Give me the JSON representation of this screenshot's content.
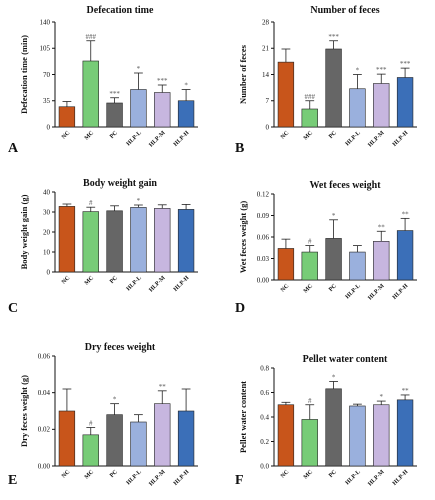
{
  "groups": [
    "NC",
    "MC",
    "PC",
    "HLP-L",
    "HLP-M",
    "HLP-H"
  ],
  "colors": [
    "#c8551b",
    "#77cc77",
    "#666666",
    "#9ab0dd",
    "#c7b6df",
    "#3b6fb8"
  ],
  "chart_data": [
    {
      "letter": "A",
      "type": "bar",
      "title": "Defecation time",
      "ylabel": "Defecation time (min)",
      "categories": [
        "NC",
        "MC",
        "PC",
        "HLP-L",
        "HLP-M",
        "HLP-H"
      ],
      "values": [
        27,
        88,
        32,
        50,
        46,
        35
      ],
      "errors": [
        7,
        27,
        7,
        22,
        10,
        15
      ],
      "significance": [
        "",
        "###",
        "***",
        "*",
        "***",
        "*"
      ],
      "ylim": [
        0,
        140
      ],
      "yticks": [
        "0",
        "35",
        "70",
        "105",
        "140"
      ]
    },
    {
      "letter": "B",
      "type": "bar",
      "title": "Number of feces",
      "ylabel": "Number of feces",
      "categories": [
        "NC",
        "MC",
        "PC",
        "HLP-L",
        "HLP-M",
        "HLP-H"
      ],
      "values": [
        17.3,
        4.8,
        20.8,
        10.2,
        11.6,
        13.2
      ],
      "errors": [
        3.5,
        2.2,
        2.2,
        3.8,
        2.5,
        2.5
      ],
      "significance": [
        "",
        "###",
        "***",
        "*",
        "***",
        "***"
      ],
      "ylim": [
        0,
        28
      ],
      "yticks": [
        "0",
        "7",
        "14",
        "21",
        "28"
      ]
    },
    {
      "letter": "C",
      "type": "bar",
      "title": "Body weight gain",
      "ylabel": "Body weight gain (g)",
      "categories": [
        "NC",
        "MC",
        "PC",
        "HLP-L",
        "HLP-M",
        "HLP-H"
      ],
      "values": [
        32.8,
        30.2,
        30.6,
        32.3,
        31.8,
        31.3
      ],
      "errors": [
        1.2,
        2.2,
        2.5,
        1.2,
        1.8,
        2.5
      ],
      "significance": [
        "",
        "#",
        "",
        "*",
        "",
        ""
      ],
      "ylim": [
        0,
        40
      ],
      "yticks": [
        "0",
        "10",
        "20",
        "30",
        "40"
      ]
    },
    {
      "letter": "D",
      "type": "bar",
      "title": "Wet feces weight",
      "ylabel": "Wet feces weight (g)",
      "categories": [
        "NC",
        "MC",
        "PC",
        "HLP-L",
        "HLP-M",
        "HLP-H"
      ],
      "values": [
        0.044,
        0.039,
        0.058,
        0.039,
        0.054,
        0.069
      ],
      "errors": [
        0.013,
        0.009,
        0.026,
        0.009,
        0.014,
        0.017
      ],
      "significance": [
        "",
        "#",
        "*",
        "",
        "**",
        "**"
      ],
      "ylim": [
        0,
        0.12
      ],
      "yticks": [
        "0.00",
        "0.03",
        "0.06",
        "0.09",
        "0.12"
      ]
    },
    {
      "letter": "E",
      "type": "bar",
      "title": "Dry feces weight",
      "ylabel": "Dry feces weight (g)",
      "categories": [
        "NC",
        "MC",
        "PC",
        "HLP-L",
        "HLP-M",
        "HLP-H"
      ],
      "values": [
        0.03,
        0.017,
        0.028,
        0.024,
        0.034,
        0.03
      ],
      "errors": [
        0.012,
        0.004,
        0.006,
        0.004,
        0.007,
        0.012
      ],
      "significance": [
        "",
        "#",
        "*",
        "",
        "**",
        ""
      ],
      "ylim": [
        0,
        0.06
      ],
      "yticks": [
        "0.00",
        "0.02",
        "0.04",
        "0.06"
      ]
    },
    {
      "letter": "F",
      "type": "bar",
      "title": "Pellet water content",
      "ylabel": "Pellet water content",
      "categories": [
        "NC",
        "MC",
        "PC",
        "HLP-L",
        "HLP-M",
        "HLP-H"
      ],
      "values": [
        0.5,
        0.38,
        0.63,
        0.49,
        0.5,
        0.54
      ],
      "errors": [
        0.02,
        0.12,
        0.06,
        0.015,
        0.03,
        0.04
      ],
      "significance": [
        "",
        "#",
        "*",
        "",
        "*",
        "**"
      ],
      "ylim": [
        0,
        0.8
      ],
      "yticks": [
        "0.0",
        "0.2",
        "0.4",
        "0.6",
        "0.8"
      ]
    }
  ]
}
